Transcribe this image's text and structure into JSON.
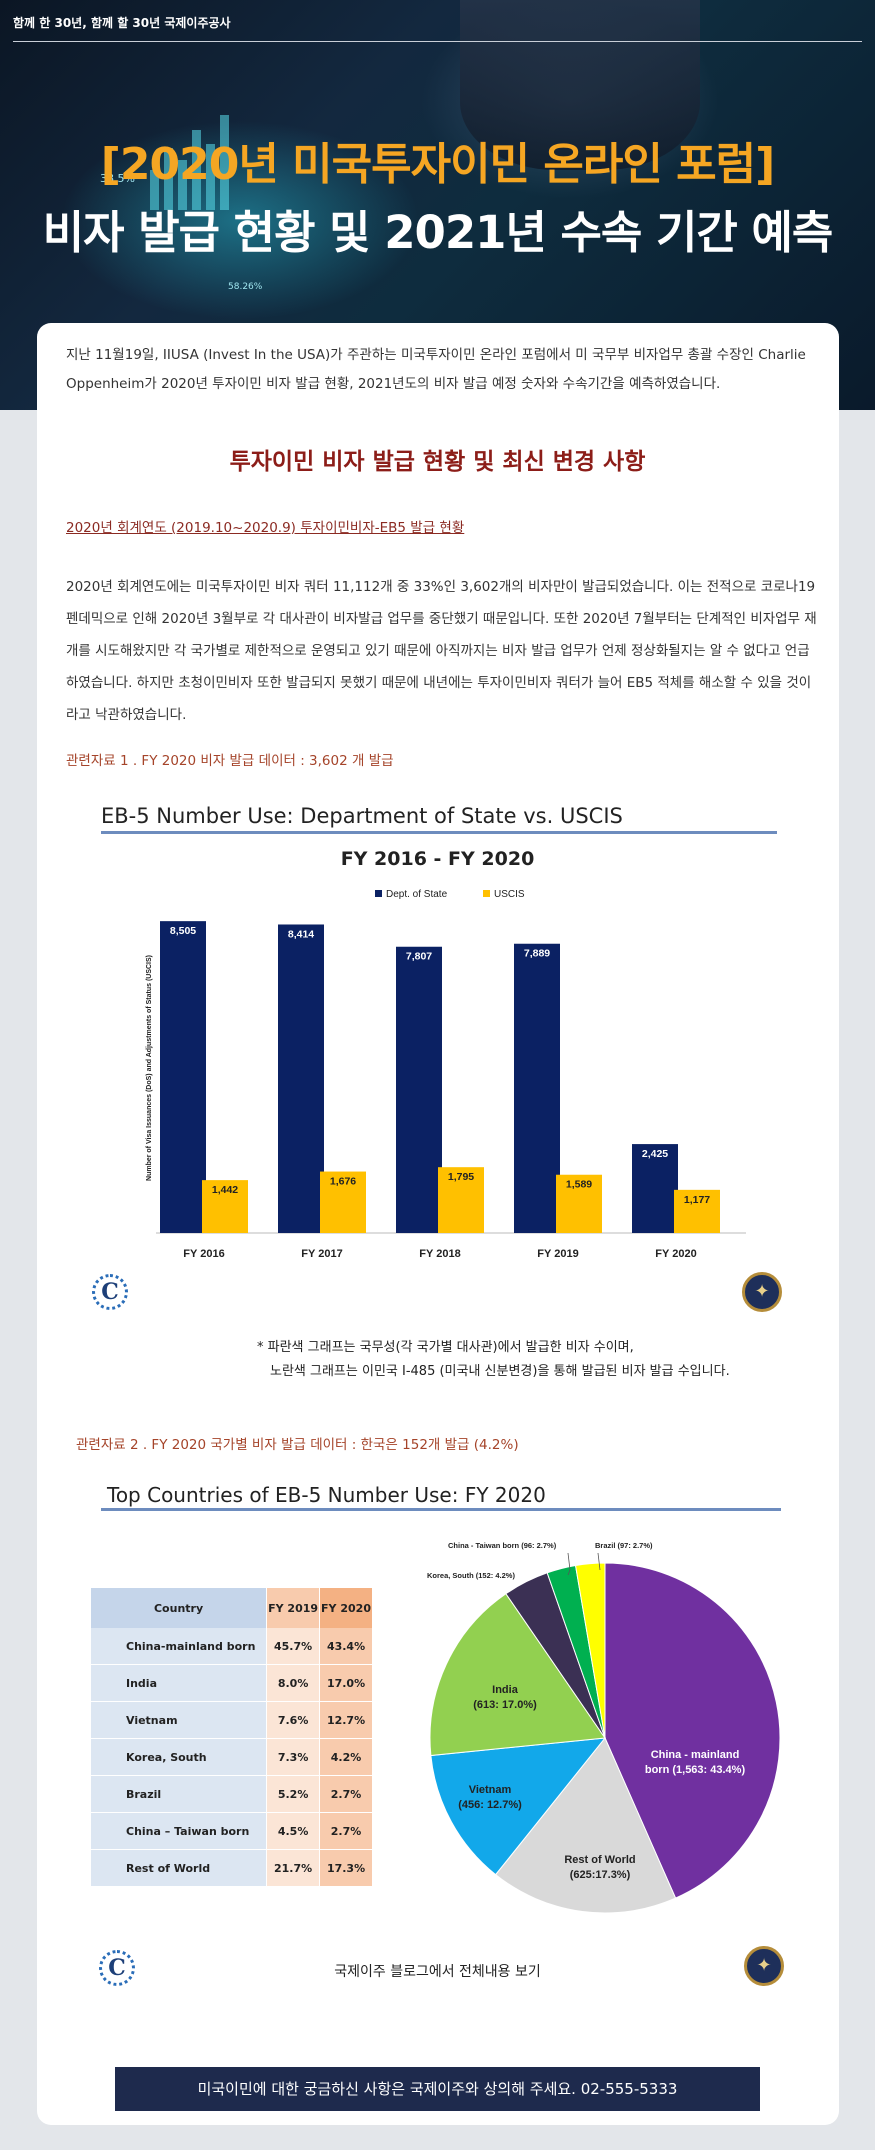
{
  "header": {
    "tagline": "함께 한 30년, 함께 할 30년 국제이주공사",
    "title_line1": "[2020년 미국투자이민 온라인 포럼]",
    "title_line2": "비자 발급 현황 및 2021년 수속 기간 예측",
    "bg_numbers": [
      "38.5%",
      "58.26%"
    ]
  },
  "intro": "지난 11월19일, IIUSA (Invest In the USA)가 주관하는 미국투자이민 온라인 포럼에서 미 국무부 비자업무 총괄 수장인 Charlie Oppenheim가 2020년 투자이민 비자 발급 현황, 2021년도의 비자 발급 예정 숫자와 수속기간을 예측하였습니다.",
  "section_title": "투자이민 비자 발급 현황 및 최신 변경 사항",
  "sub_link": "2020년 회계연도 (2019.10~2020.9) 투자이민비자-EB5 발급 현황",
  "body": "2020년 회계연도에는 미국투자이민 비자 쿼터 11,112개 중 33%인 3,602개의 비자만이 발급되었습니다. 이는 전적으로 코로나19 펜데믹으로 인해 2020년 3월부로 각 대사관이 비자발급 업무를 중단했기 때문입니다. 또한 2020년 7월부터는 단계적인 비자업무 재개를 시도해왔지만 각 국가별로 제한적으로 운영되고 있기 때문에 아직까지는 비자 발급 업무가 언제 정상화될지는 알 수 없다고 언급하였습니다. 하지만 초청이민비자 또한 발급되지 못했기 때문에 내년에는 투자이민비자 쿼터가 늘어 EB5 적체를 해소할 수 있을 것이라고 낙관하였습니다.",
  "ref1": "관련자료 1 . FY 2020 비자 발급 데이터 : 3,602 개 발급",
  "note_line1": "* 파란색 그래프는 국무성(각 국가별 대사관)에서 발급한 비자 수이며,",
  "note_line2": "노란색 그래프는 이민국 I-485 (미국내 신분변경)을 통해 발급된 비자 발급 수입니다.",
  "ref2": "관련자료 2 . FY 2020 국가별 비자 발급 데이터 : 한국은 152개 발급 (4.2%)",
  "blog_link": "국제이주 블로그에서 전체내용 보기",
  "footer": "미국이민에 대한 궁금하신 사항은 국제이주와 상의해 주세요. 02-555-5333",
  "logos": {
    "left_letter": "C",
    "seal_icon": "eagle-seal-icon"
  },
  "colors": {
    "dos": "#0b2163",
    "uscis": "#ffc000",
    "accent": "#8c1d18",
    "footer_bg": "#1e2a4d"
  },
  "chart_data": [
    {
      "type": "bar",
      "title": "EB-5 Number Use: Department of State vs. USCIS",
      "subtitle": "FY 2016 - FY 2020",
      "ylabel": "Number of Visa Issuances (DoS) and Adjustments of Status (USCIS)",
      "xlabel": "",
      "categories": [
        "FY 2016",
        "FY 2017",
        "FY 2018",
        "FY 2019",
        "FY 2020"
      ],
      "series": [
        {
          "name": "Dept. of State",
          "values": [
            8505,
            8414,
            7807,
            7889,
            2425
          ],
          "labels": [
            "8,505",
            "8,414",
            "7,807",
            "7,889",
            "2,425"
          ],
          "color": "#0b2163"
        },
        {
          "name": "USCIS",
          "values": [
            1442,
            1676,
            1795,
            1589,
            1177
          ],
          "labels": [
            "1,442",
            "1,676",
            "1,795",
            "1,589",
            "1,177"
          ],
          "color": "#ffc000"
        }
      ],
      "ylim": [
        0,
        9000
      ],
      "legend": "top-center",
      "grid": false
    },
    {
      "type": "table",
      "title": "Top Countries of EB-5 Number Use: FY 2020",
      "columns": [
        "Country",
        "FY 2019",
        "FY 2020"
      ],
      "rows": [
        [
          "China-mainland born",
          "45.7%",
          "43.4%"
        ],
        [
          "India",
          "8.0%",
          "17.0%"
        ],
        [
          "Vietnam",
          "7.6%",
          "12.7%"
        ],
        [
          "Korea, South",
          "7.3%",
          "4.2%"
        ],
        [
          "Brazil",
          "5.2%",
          "2.7%"
        ],
        [
          "China – Taiwan born",
          "4.5%",
          "2.7%"
        ],
        [
          "Rest of World",
          "21.7%",
          "17.3%"
        ]
      ]
    },
    {
      "type": "pie",
      "slices": [
        {
          "label": "China - mainland born (1,563: 43.4%)",
          "value": 1563,
          "color": "#7030a0"
        },
        {
          "label": "Rest of World (625:17.3%)",
          "value": 625,
          "color": "#d9d9d9"
        },
        {
          "label": "Vietnam (456: 12.7%)",
          "value": 456,
          "color": "#12a8ea"
        },
        {
          "label": "India (613: 17.0%)",
          "value": 613,
          "color": "#92d050"
        },
        {
          "label": "Korea, South (152: 4.2%)",
          "value": 152,
          "color": "#3b3054"
        },
        {
          "label": "China - Taiwan born (96: 2.7%)",
          "value": 96,
          "color": "#00b050"
        },
        {
          "label": "Brazil (97: 2.7%)",
          "value": 97,
          "color": "#ffff00"
        }
      ]
    }
  ]
}
